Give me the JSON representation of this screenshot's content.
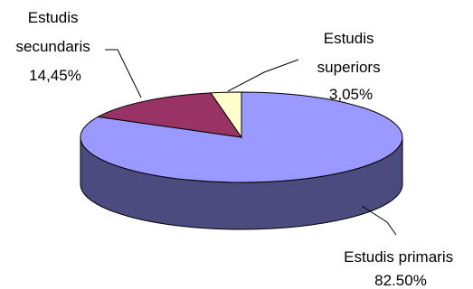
{
  "chart_data": {
    "type": "pie",
    "style": "3d",
    "legend": "none",
    "slices": [
      {
        "category": "Estudis primaris",
        "value": 82.5,
        "label_lines": [
          "Estudis primaris",
          "82.50%"
        ],
        "color": "#9999ff",
        "side_color": "#4b4b7f"
      },
      {
        "category": "Estudis secundaris",
        "value": 14.45,
        "label_lines": [
          "Estudis",
          "secundaris",
          "14,45%"
        ],
        "color": "#993366",
        "side_color": "#4c1933"
      },
      {
        "category": "Estudis superiors",
        "value": 3.05,
        "label_lines": [
          "Estudis",
          "superiors",
          "3,05%"
        ],
        "color": "#ffffcc",
        "side_color": "#7f7f66"
      }
    ]
  }
}
